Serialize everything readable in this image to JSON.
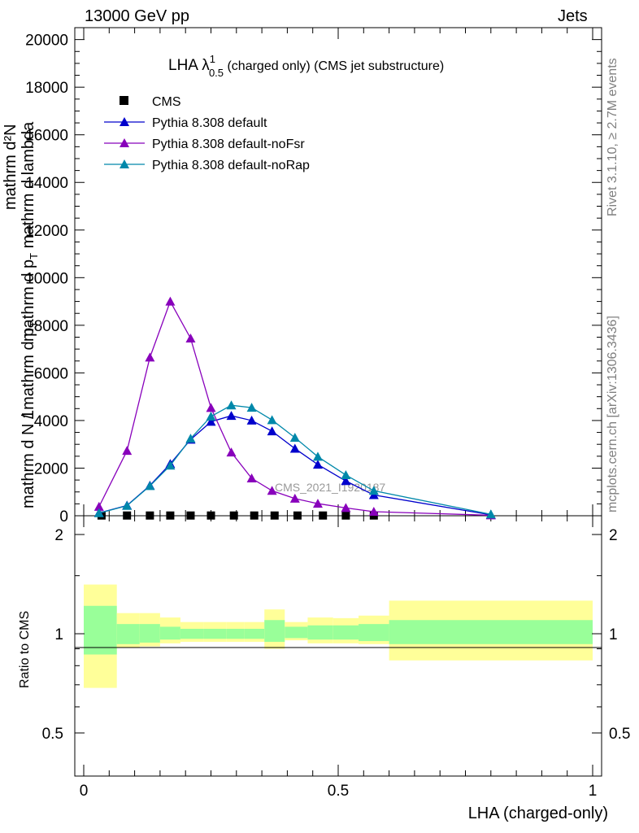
{
  "header": {
    "left": "13000 GeV pp",
    "right": "Jets"
  },
  "side_labels": {
    "rivet": "Rivet 3.1.10, ≥ 2.7M events",
    "mcplots": "mcplots.cern.ch [arXiv:1306.3436]"
  },
  "watermark": "CMS_2021_I1920187",
  "colors": {
    "data": "#000000",
    "default": "#0000cc",
    "noFsr": "#8800bb",
    "noRap": "#0088aa",
    "band_inner": "#99ff99",
    "band_outer": "#ffff99"
  },
  "main_ylabel": {
    "prefix": "1",
    "num_top": "mathrm d²N",
    "den_top": "mathrm d p",
    "den_top_sub": "T",
    "den_top_tail": " mathrm d lambda",
    "fraction_num": "mathrm d N",
    "fraction_den": "mathrm d N / mathrm d p",
    "fraction_den_sub": "T"
  },
  "ratio_ylabel": "Ratio to CMS",
  "chart_data": [
    {
      "type": "line",
      "title": "LHA λ",
      "title_sup": "1",
      "title_sub": "0.5",
      "title_tail": " (charged only) (CMS jet substructure)",
      "xlabel": "LHA (charged-only)",
      "xlim": [
        0,
        1
      ],
      "ylim": [
        0,
        20500
      ],
      "yticks": [
        0,
        2000,
        4000,
        6000,
        8000,
        10000,
        12000,
        14000,
        16000,
        18000,
        20000
      ],
      "xticks": [
        0,
        0.5,
        1
      ],
      "xtick_labels": [
        "0",
        "0.5",
        "1"
      ],
      "legend_position": "top-left",
      "series": [
        {
          "name": "CMS",
          "marker": "square",
          "x": [
            0.035,
            0.085,
            0.13,
            0.17,
            0.21,
            0.25,
            0.295,
            0.335,
            0.375,
            0.42,
            0.47,
            0.515,
            0.57
          ],
          "y": [
            10,
            10,
            10,
            10,
            10,
            10,
            10,
            10,
            10,
            10,
            10,
            10,
            10
          ]
        },
        {
          "name": "Pythia 8.308 default",
          "marker": "triangle",
          "x": [
            0.03,
            0.085,
            0.13,
            0.17,
            0.21,
            0.25,
            0.29,
            0.33,
            0.37,
            0.415,
            0.46,
            0.515,
            0.57,
            0.8
          ],
          "y": [
            120,
            430,
            1270,
            2180,
            3200,
            3950,
            4200,
            4000,
            3550,
            2820,
            2150,
            1460,
            870,
            40
          ]
        },
        {
          "name": "Pythia 8.308 default-noFsr",
          "marker": "triangle",
          "x": [
            0.03,
            0.085,
            0.13,
            0.17,
            0.21,
            0.25,
            0.29,
            0.33,
            0.37,
            0.415,
            0.46,
            0.515,
            0.57,
            0.8
          ],
          "y": [
            380,
            2730,
            6650,
            9000,
            7450,
            4530,
            2660,
            1570,
            1050,
            720,
            510,
            330,
            170,
            20
          ]
        },
        {
          "name": "Pythia 8.308 default-noRap",
          "marker": "triangle",
          "x": [
            0.03,
            0.085,
            0.13,
            0.17,
            0.21,
            0.25,
            0.29,
            0.33,
            0.37,
            0.415,
            0.46,
            0.515,
            0.57,
            0.8
          ],
          "y": [
            110,
            420,
            1250,
            2110,
            3240,
            4170,
            4640,
            4540,
            4020,
            3280,
            2480,
            1710,
            1050,
            60
          ]
        }
      ]
    },
    {
      "type": "area",
      "ylabel": "Ratio to CMS",
      "xlim": [
        0,
        1
      ],
      "ylim": [
        0.37,
        2.28
      ],
      "yticks": [
        0.5,
        1,
        2
      ],
      "ytick_labels": [
        "0.5",
        "1",
        "2"
      ],
      "bins": [
        {
          "x0": 0.0,
          "x1": 0.065,
          "inner": [
            0.865,
            1.215
          ],
          "outer": [
            0.685,
            1.41
          ]
        },
        {
          "x0": 0.065,
          "x1": 0.11,
          "inner": [
            0.93,
            1.07
          ],
          "outer": [
            0.91,
            1.155
          ]
        },
        {
          "x0": 0.11,
          "x1": 0.15,
          "inner": [
            0.94,
            1.07
          ],
          "outer": [
            0.915,
            1.155
          ]
        },
        {
          "x0": 0.15,
          "x1": 0.19,
          "inner": [
            0.96,
            1.05
          ],
          "outer": [
            0.935,
            1.12
          ]
        },
        {
          "x0": 0.19,
          "x1": 0.235,
          "inner": [
            0.965,
            1.035
          ],
          "outer": [
            0.945,
            1.085
          ]
        },
        {
          "x0": 0.235,
          "x1": 0.28,
          "inner": [
            0.965,
            1.035
          ],
          "outer": [
            0.945,
            1.085
          ]
        },
        {
          "x0": 0.28,
          "x1": 0.315,
          "inner": [
            0.965,
            1.035
          ],
          "outer": [
            0.945,
            1.085
          ]
        },
        {
          "x0": 0.315,
          "x1": 0.355,
          "inner": [
            0.965,
            1.035
          ],
          "outer": [
            0.945,
            1.085
          ]
        },
        {
          "x0": 0.355,
          "x1": 0.395,
          "inner": [
            0.945,
            1.1
          ],
          "outer": [
            0.9,
            1.185
          ]
        },
        {
          "x0": 0.395,
          "x1": 0.44,
          "inner": [
            0.97,
            1.05
          ],
          "outer": [
            0.955,
            1.085
          ]
        },
        {
          "x0": 0.44,
          "x1": 0.49,
          "inner": [
            0.96,
            1.06
          ],
          "outer": [
            0.935,
            1.12
          ]
        },
        {
          "x0": 0.49,
          "x1": 0.54,
          "inner": [
            0.96,
            1.06
          ],
          "outer": [
            0.935,
            1.115
          ]
        },
        {
          "x0": 0.54,
          "x1": 0.6,
          "inner": [
            0.95,
            1.07
          ],
          "outer": [
            0.93,
            1.135
          ]
        },
        {
          "x0": 0.6,
          "x1": 1.0,
          "inner": [
            0.93,
            1.1
          ],
          "outer": [
            0.83,
            1.26
          ]
        }
      ]
    }
  ]
}
